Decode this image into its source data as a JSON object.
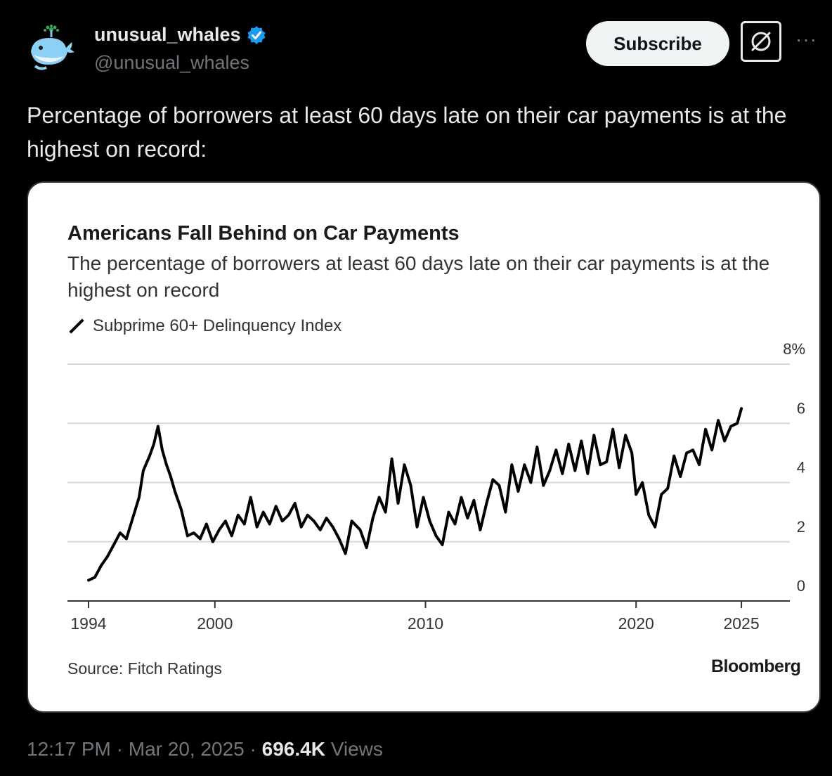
{
  "user": {
    "display_name": "unusual_whales",
    "handle": "@unusual_whales",
    "avatar_icon": "whale-icon",
    "verified_color": "#1d9bf0"
  },
  "actions": {
    "subscribe_label": "Subscribe",
    "grok_icon": "grok-icon",
    "more_label": "···"
  },
  "tweet": {
    "text": "Percentage of borrowers at least 60 days late on their car payments is at the highest on record:"
  },
  "chart": {
    "title": "Americans Fall Behind on Car Payments",
    "subtitle": "The percentage of borrowers at least 60 days late on their car payments is at the highest on record",
    "legend_label": "Subprime 60+ Delinquency Index",
    "source": "Source: Fitch Ratings",
    "brand": "Bloomberg"
  },
  "chart_data": {
    "type": "line",
    "title": "Americans Fall Behind on Car Payments",
    "subtitle": "The percentage of borrowers at least 60 days late on their car payments is at the highest on record",
    "xlabel": "",
    "ylabel": "",
    "x_ticks": [
      "1994",
      "2000",
      "2010",
      "2020",
      "2025"
    ],
    "y_ticks": [
      "0",
      "2",
      "4",
      "6",
      "8%"
    ],
    "ylim": [
      0,
      8
    ],
    "xlim": [
      1993,
      2027.3
    ],
    "grid": true,
    "y_axis_side": "right",
    "series": [
      {
        "name": "Subprime 60+ Delinquency Index",
        "color": "#000000",
        "x": [
          1994.0,
          1994.3,
          1994.6,
          1994.9,
          1995.2,
          1995.5,
          1995.8,
          1996.1,
          1996.4,
          1996.6,
          1996.9,
          1997.1,
          1997.3,
          1997.5,
          1997.7,
          1997.9,
          1998.1,
          1998.4,
          1998.7,
          1999.0,
          1999.3,
          1999.6,
          1999.9,
          2000.2,
          2000.5,
          2000.8,
          2001.1,
          2001.4,
          2001.7,
          2002.0,
          2002.3,
          2002.6,
          2002.9,
          2003.2,
          2003.5,
          2003.8,
          2004.1,
          2004.4,
          2004.7,
          2005.0,
          2005.3,
          2005.6,
          2005.9,
          2006.2,
          2006.5,
          2006.9,
          2007.2,
          2007.5,
          2007.8,
          2008.1,
          2008.4,
          2008.7,
          2009.0,
          2009.3,
          2009.6,
          2009.9,
          2010.2,
          2010.5,
          2010.8,
          2011.1,
          2011.4,
          2011.7,
          2012.0,
          2012.3,
          2012.6,
          2012.9,
          2013.2,
          2013.5,
          2013.8,
          2014.1,
          2014.4,
          2014.7,
          2015.0,
          2015.3,
          2015.6,
          2015.9,
          2016.2,
          2016.5,
          2016.8,
          2017.1,
          2017.4,
          2017.7,
          2018.0,
          2018.3,
          2018.6,
          2018.9,
          2019.2,
          2019.5,
          2019.8,
          2020.0,
          2020.3,
          2020.6,
          2020.9,
          2021.2,
          2021.5,
          2021.8,
          2022.1,
          2022.4,
          2022.7,
          2023.0,
          2023.3,
          2023.6,
          2023.9,
          2024.2,
          2024.5,
          2024.8,
          2025.0
        ],
        "values": [
          0.7,
          0.8,
          1.2,
          1.5,
          1.9,
          2.3,
          2.1,
          2.8,
          3.5,
          4.4,
          4.9,
          5.3,
          5.9,
          5.1,
          4.6,
          4.2,
          3.7,
          3.1,
          2.2,
          2.3,
          2.1,
          2.6,
          2.0,
          2.4,
          2.7,
          2.2,
          2.9,
          2.6,
          3.5,
          2.5,
          3.0,
          2.6,
          3.2,
          2.7,
          2.9,
          3.3,
          2.5,
          2.9,
          2.7,
          2.4,
          2.8,
          2.5,
          2.1,
          1.6,
          2.7,
          2.4,
          1.8,
          2.8,
          3.5,
          3.0,
          4.8,
          3.3,
          4.6,
          3.9,
          2.5,
          3.5,
          2.7,
          2.2,
          1.9,
          3.0,
          2.6,
          3.5,
          2.8,
          3.4,
          2.4,
          3.3,
          4.1,
          3.9,
          3.0,
          4.6,
          3.7,
          4.6,
          4.0,
          5.2,
          3.9,
          4.4,
          5.1,
          4.3,
          5.3,
          4.4,
          5.4,
          4.3,
          5.6,
          4.6,
          4.7,
          5.8,
          4.5,
          5.6,
          5.0,
          3.6,
          4.0,
          2.9,
          2.5,
          3.6,
          3.8,
          4.9,
          4.2,
          5.0,
          5.1,
          4.6,
          5.8,
          5.1,
          6.1,
          5.4,
          5.9,
          6.0,
          6.5
        ]
      }
    ]
  },
  "footer": {
    "time": "12:17 PM",
    "sep1": "·",
    "date": "Mar 20, 2025",
    "sep2": "·",
    "views_count": "696.4K",
    "views_label": "Views"
  }
}
